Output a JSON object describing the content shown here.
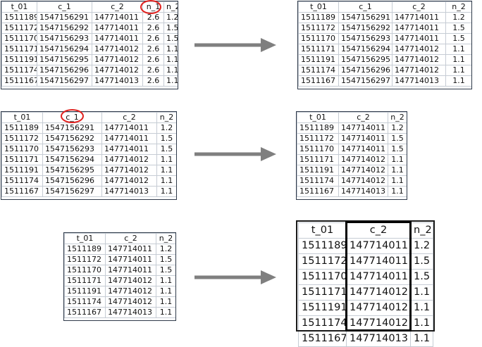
{
  "colors": {
    "circle": "#e0211e",
    "arrow": "#7f7f7f",
    "grid": "#c6ccd4",
    "highlight": "#000000"
  },
  "tables": {
    "t1": {
      "headers": [
        "t_01",
        "c_1",
        "c_2",
        "n_1",
        "n_2"
      ],
      "rows": [
        [
          "1511189",
          "1547156291",
          "147714011",
          "2.6",
          "1.2"
        ],
        [
          "1511172",
          "1547156292",
          "147714011",
          "2.6",
          "1.5"
        ],
        [
          "1511170",
          "1547156293",
          "147714011",
          "2.6",
          "1.5"
        ],
        [
          "1511171",
          "1547156294",
          "147714012",
          "2.6",
          "1.1"
        ],
        [
          "1511191",
          "1547156295",
          "147714012",
          "2.6",
          "1.1"
        ],
        [
          "1511174",
          "1547156296",
          "147714012",
          "2.6",
          "1.1"
        ],
        [
          "1511167",
          "1547156297",
          "147714013",
          "2.6",
          "1.1"
        ]
      ]
    },
    "t2": {
      "headers": [
        "t_01",
        "c_1",
        "c_2",
        "n_2"
      ],
      "rows": [
        [
          "1511189",
          "1547156291",
          "147714011",
          "1.2"
        ],
        [
          "1511172",
          "1547156292",
          "147714011",
          "1.5"
        ],
        [
          "1511170",
          "1547156293",
          "147714011",
          "1.5"
        ],
        [
          "1511171",
          "1547156294",
          "147714012",
          "1.1"
        ],
        [
          "1511191",
          "1547156295",
          "147714012",
          "1.1"
        ],
        [
          "1511174",
          "1547156296",
          "147714012",
          "1.1"
        ],
        [
          "1511167",
          "1547156297",
          "147714013",
          "1.1"
        ]
      ]
    },
    "t3": {
      "headers": [
        "t_01",
        "c_1",
        "c_2",
        "n_2"
      ],
      "rows": [
        [
          "1511189",
          "1547156291",
          "147714011",
          "1.2"
        ],
        [
          "1511172",
          "1547156292",
          "147714011",
          "1.5"
        ],
        [
          "1511170",
          "1547156293",
          "147714011",
          "1.5"
        ],
        [
          "1511171",
          "1547156294",
          "147714012",
          "1.1"
        ],
        [
          "1511191",
          "1547156295",
          "147714012",
          "1.1"
        ],
        [
          "1511174",
          "1547156296",
          "147714012",
          "1.1"
        ],
        [
          "1511167",
          "1547156297",
          "147714013",
          "1.1"
        ]
      ]
    },
    "t4": {
      "headers": [
        "t_01",
        "c_2",
        "n_2"
      ],
      "rows": [
        [
          "1511189",
          "147714011",
          "1.2"
        ],
        [
          "1511172",
          "147714011",
          "1.5"
        ],
        [
          "1511170",
          "147714011",
          "1.5"
        ],
        [
          "1511171",
          "147714012",
          "1.1"
        ],
        [
          "1511191",
          "147714012",
          "1.1"
        ],
        [
          "1511174",
          "147714012",
          "1.1"
        ],
        [
          "1511167",
          "147714013",
          "1.1"
        ]
      ]
    },
    "t5": {
      "headers": [
        "t_01",
        "c_2",
        "n_2"
      ],
      "rows": [
        [
          "1511189",
          "147714011",
          "1.2"
        ],
        [
          "1511172",
          "147714011",
          "1.5"
        ],
        [
          "1511170",
          "147714011",
          "1.5"
        ],
        [
          "1511171",
          "147714012",
          "1.1"
        ],
        [
          "1511191",
          "147714012",
          "1.1"
        ],
        [
          "1511174",
          "147714012",
          "1.1"
        ],
        [
          "1511167",
          "147714013",
          "1.1"
        ]
      ]
    },
    "t6": {
      "headers": [
        "t_01",
        "c_2",
        "n_2"
      ],
      "rows": [
        [
          "1511189",
          "147714011",
          "1.2"
        ],
        [
          "1511172",
          "147714011",
          "1.5"
        ],
        [
          "1511170",
          "147714011",
          "1.5"
        ],
        [
          "1511171",
          "147714012",
          "1.1"
        ],
        [
          "1511191",
          "147714012",
          "1.1"
        ],
        [
          "1511174",
          "147714012",
          "1.1"
        ],
        [
          "1511167",
          "147714013",
          "1.1"
        ]
      ]
    }
  }
}
